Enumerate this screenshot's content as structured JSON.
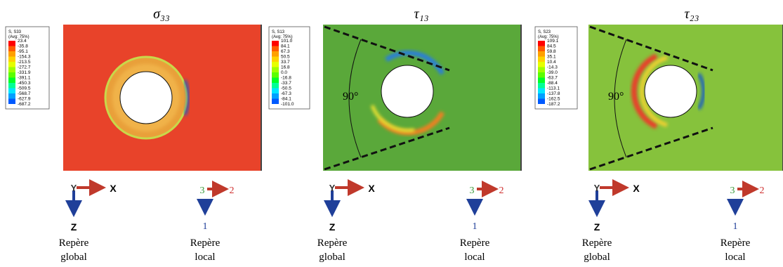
{
  "panels": [
    {
      "title": "σ₃₃",
      "legend": {
        "header": [
          "S, S33",
          "(Avg: 75%)"
        ],
        "values": [
          "23.4",
          "-35.8",
          "-95.1",
          "-154.3",
          "-213.5",
          "-272.7",
          "-331.9",
          "-391.1",
          "-450.3",
          "-509.5",
          "-568.7",
          "-627.9",
          "-687.2"
        ]
      },
      "global_axes": {
        "y": "Y",
        "x": "X",
        "z": "Z"
      },
      "local_axes": {
        "a": "3",
        "b": "2",
        "c": "1"
      },
      "global_label": [
        "Repère",
        "global"
      ],
      "local_label": [
        "Repère",
        "local"
      ]
    },
    {
      "title": "τ₁₃",
      "legend": {
        "header": [
          "S, S13",
          "(Avg: 75%)"
        ],
        "values": [
          "101.0",
          "84.1",
          "67.3",
          "50.5",
          "33.7",
          "16.8",
          "0.0",
          "-16.8",
          "-33.7",
          "-50.5",
          "-67.3",
          "-84.1",
          "-101.0"
        ]
      },
      "angle": "90°",
      "global_axes": {
        "y": "Y",
        "x": "X",
        "z": "Z"
      },
      "local_axes": {
        "a": "3",
        "b": "2",
        "c": "1"
      },
      "global_label": [
        "Repère",
        "global"
      ],
      "local_label": [
        "Repère",
        "local"
      ]
    },
    {
      "title": "τ₂₃",
      "legend": {
        "header": [
          "S, S23",
          "(Avg: 75%)"
        ],
        "values": [
          "109.1",
          "84.5",
          "59.8",
          "35.1",
          "10.4",
          "-14.3",
          "-39.0",
          "-63.7",
          "-88.4",
          "-113.1",
          "-137.8",
          "-162.5",
          "-187.2"
        ]
      },
      "angle": "90°",
      "global_axes": {
        "y": "Y",
        "x": "X",
        "z": "Z"
      },
      "local_axes": {
        "a": "3",
        "b": "2",
        "c": "1"
      },
      "global_label": [
        "Repère",
        "global"
      ],
      "local_label": [
        "Repère",
        "local"
      ]
    }
  ]
}
